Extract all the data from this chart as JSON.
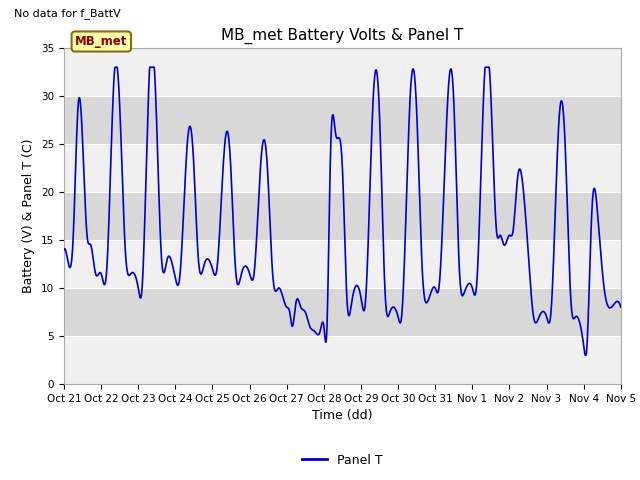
{
  "title": "MB_met Battery Volts & Panel T",
  "no_data_text": "No data for f_BattV",
  "ylabel": "Battery (V) & Panel T (C)",
  "xlabel": "Time (dd)",
  "ylim": [
    0,
    35
  ],
  "xlim": [
    0,
    15
  ],
  "line_color": "#0000CC",
  "line_width": 1.2,
  "legend_label": "Panel T",
  "legend_line_color": "#0000CC",
  "mb_met_label": "MB_met",
  "mb_met_box_facecolor": "#FFFFAA",
  "mb_met_box_edgecolor": "#8B6914",
  "mb_met_text_color": "#8B0000",
  "background_color": "#ffffff",
  "plot_bg_light": "#f0f0f0",
  "plot_bg_dark": "#d8d8d8",
  "grid_color": "#ffffff",
  "xtick_labels": [
    "Oct 21",
    "Oct 22",
    "Oct 23",
    "Oct 24",
    "Oct 25",
    "Oct 26",
    "Oct 27",
    "Oct 28",
    "Oct 29",
    "Oct 30",
    "Oct 31",
    "Nov 1",
    "Nov 2",
    "Nov 3",
    "Nov 4",
    "Nov 5"
  ],
  "title_fontsize": 11,
  "label_fontsize": 9,
  "tick_fontsize": 7.5,
  "yticks": [
    0,
    5,
    10,
    15,
    20,
    25,
    30,
    35
  ],
  "figsize": [
    6.4,
    4.8
  ],
  "dpi": 100
}
